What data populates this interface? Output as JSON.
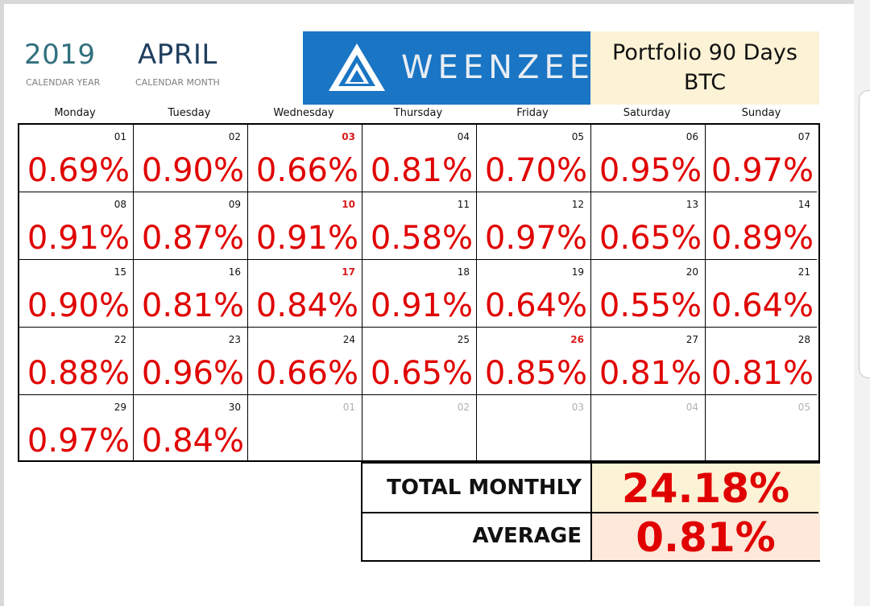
{
  "header": {
    "year": "2019",
    "year_caption": "CALENDAR YEAR",
    "month": "APRIL",
    "month_caption": "CALENDAR MONTH",
    "logo_text": "WEENZEE",
    "portfolio_line1": "Portfolio 90 Days",
    "portfolio_line2": "BTC"
  },
  "weekdays": [
    "Monday",
    "Tuesday",
    "Wednesday",
    "Thursday",
    "Friday",
    "Saturday",
    "Sunday"
  ],
  "weeks": [
    [
      {
        "day": "01",
        "value": "0.69%"
      },
      {
        "day": "02",
        "value": "0.90%"
      },
      {
        "day": "03",
        "value": "0.66%",
        "highlight": true
      },
      {
        "day": "04",
        "value": "0.81%"
      },
      {
        "day": "05",
        "value": "0.70%"
      },
      {
        "day": "06",
        "value": "0.95%"
      },
      {
        "day": "07",
        "value": "0.97%"
      }
    ],
    [
      {
        "day": "08",
        "value": "0.91%"
      },
      {
        "day": "09",
        "value": "0.87%"
      },
      {
        "day": "10",
        "value": "0.91%",
        "highlight": true
      },
      {
        "day": "11",
        "value": "0.58%"
      },
      {
        "day": "12",
        "value": "0.97%"
      },
      {
        "day": "13",
        "value": "0.65%"
      },
      {
        "day": "14",
        "value": "0.89%"
      }
    ],
    [
      {
        "day": "15",
        "value": "0.90%"
      },
      {
        "day": "16",
        "value": "0.81%"
      },
      {
        "day": "17",
        "value": "0.84%",
        "highlight": true
      },
      {
        "day": "18",
        "value": "0.91%"
      },
      {
        "day": "19",
        "value": "0.64%"
      },
      {
        "day": "20",
        "value": "0.55%"
      },
      {
        "day": "21",
        "value": "0.64%"
      }
    ],
    [
      {
        "day": "22",
        "value": "0.88%"
      },
      {
        "day": "23",
        "value": "0.96%"
      },
      {
        "day": "24",
        "value": "0.66%"
      },
      {
        "day": "25",
        "value": "0.65%"
      },
      {
        "day": "26",
        "value": "0.85%",
        "highlight": true
      },
      {
        "day": "27",
        "value": "0.81%"
      },
      {
        "day": "28",
        "value": "0.81%"
      }
    ],
    [
      {
        "day": "29",
        "value": "0.97%"
      },
      {
        "day": "30",
        "value": "0.84%"
      },
      {
        "day": "01",
        "value": "",
        "faded": true
      },
      {
        "day": "02",
        "value": "",
        "faded": true
      },
      {
        "day": "03",
        "value": "",
        "faded": true
      },
      {
        "day": "04",
        "value": "",
        "faded": true
      },
      {
        "day": "05",
        "value": "",
        "faded": true
      }
    ]
  ],
  "summary": {
    "total_label": "TOTAL MONTHLY",
    "total_value": "24.18%",
    "average_label": "AVERAGE",
    "average_value": "0.81%"
  },
  "colors": {
    "accent_red": "#e00000",
    "logo_blue": "#1a75c4",
    "cream": "#fcf2d5",
    "peach": "#fde8d9",
    "year_teal": "#31707e"
  }
}
